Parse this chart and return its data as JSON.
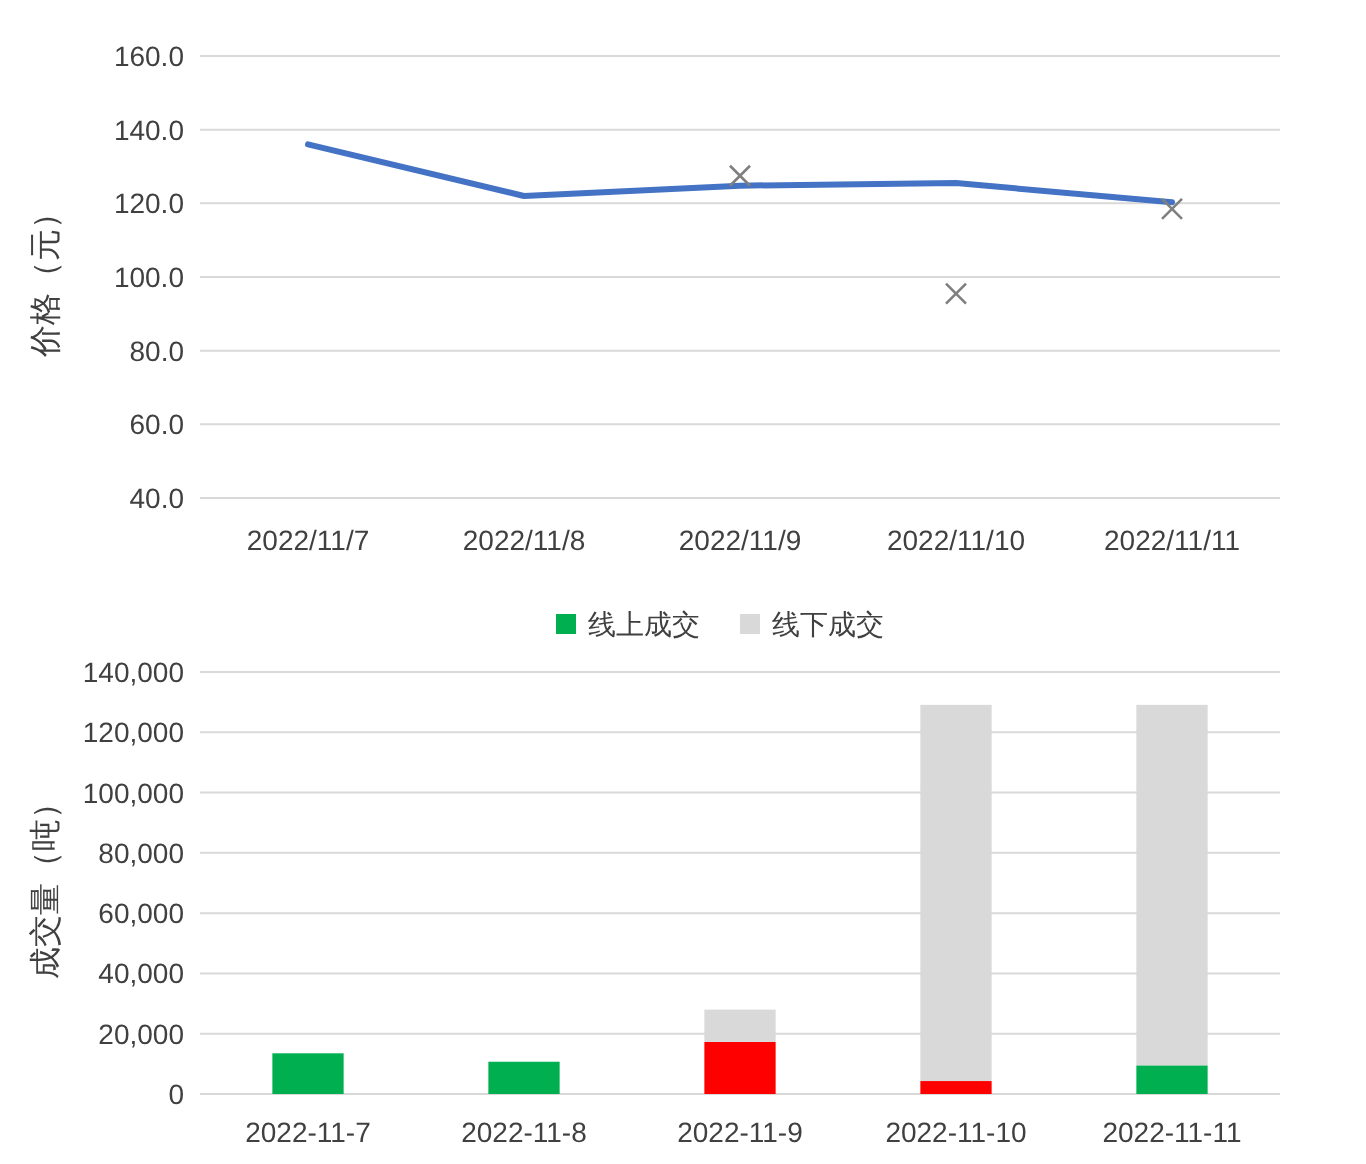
{
  "chart_data": [
    {
      "type": "line",
      "ylabel": "价格（元）",
      "categories": [
        "2022/11/7",
        "2022/11/8",
        "2022/11/9",
        "2022/11/10",
        "2022/11/11"
      ],
      "series": [
        {
          "type": "line",
          "color": "#4472c4",
          "values": [
            136,
            122,
            124.8,
            125.5,
            120.3
          ]
        },
        {
          "type": "scatter",
          "color": "#7f7f7f",
          "marker": "cross",
          "values": [
            null,
            null,
            127.5,
            95.5,
            118.5
          ]
        }
      ],
      "ylim": [
        40,
        160
      ],
      "yticks": [
        {
          "value": 40,
          "label": "40.0"
        },
        {
          "value": 60,
          "label": "60.0"
        },
        {
          "value": 80,
          "label": "80.0"
        },
        {
          "value": 100,
          "label": "100.0"
        },
        {
          "value": 120,
          "label": "120.0"
        },
        {
          "value": 140,
          "label": "140.0"
        },
        {
          "value": 160,
          "label": "160.0"
        }
      ],
      "grid": "y"
    },
    {
      "type": "bar",
      "stacked": true,
      "ylabel": "成交量（吨）",
      "categories": [
        "2022-11-7",
        "2022-11-8",
        "2022-11-9",
        "2022-11-10",
        "2022-11-11"
      ],
      "series": [
        {
          "name": "线上成交",
          "color": "#00b050",
          "colors": [
            "#00b050",
            "#00b050",
            "#ff0000",
            "#ff0000",
            "#00b050"
          ],
          "values": [
            13500,
            10700,
            17300,
            4300,
            9500
          ]
        },
        {
          "name": "线下成交",
          "color": "#d9d9d9",
          "values": [
            null,
            null,
            10700,
            124800,
            119600
          ]
        }
      ],
      "ylim": [
        0,
        140000
      ],
      "yticks": [
        0,
        {
          "value": 20000,
          "label": "20,000"
        },
        {
          "value": 40000,
          "label": "40,000"
        },
        {
          "value": 60000,
          "label": "60,000"
        },
        {
          "value": 80000,
          "label": "80,000"
        },
        {
          "value": 100000,
          "label": "100,000"
        },
        {
          "value": 120000,
          "label": "120,000"
        },
        {
          "value": 140000,
          "label": "140,000"
        }
      ],
      "grid": "y",
      "legend": "top"
    }
  ]
}
